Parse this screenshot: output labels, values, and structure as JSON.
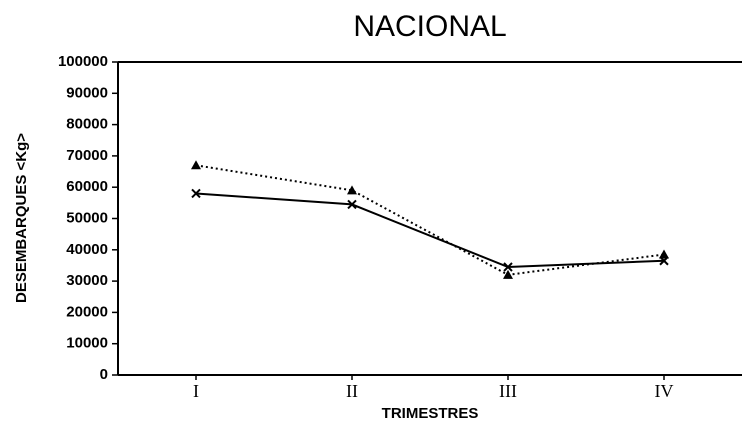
{
  "chart_data": {
    "type": "line",
    "title": "NACIONAL",
    "y_label": "DESEMBARQUES <Kg>",
    "x_label": "TRIMESTRES",
    "categories": [
      "I",
      "II",
      "III",
      "IV"
    ],
    "series": [
      {
        "color": "#000000",
        "style": "solid",
        "marker": "x",
        "values": [
          58000,
          54500,
          34500,
          36500
        ]
      },
      {
        "color": "#000000",
        "style": "dotted",
        "marker": "triangle",
        "values": [
          67000,
          59000,
          32000,
          38500
        ]
      }
    ],
    "ylim": [
      0,
      100000
    ],
    "yticks": [
      0,
      10000,
      20000,
      30000,
      40000,
      50000,
      60000,
      70000,
      80000,
      90000,
      100000
    ],
    "grid": false
  }
}
